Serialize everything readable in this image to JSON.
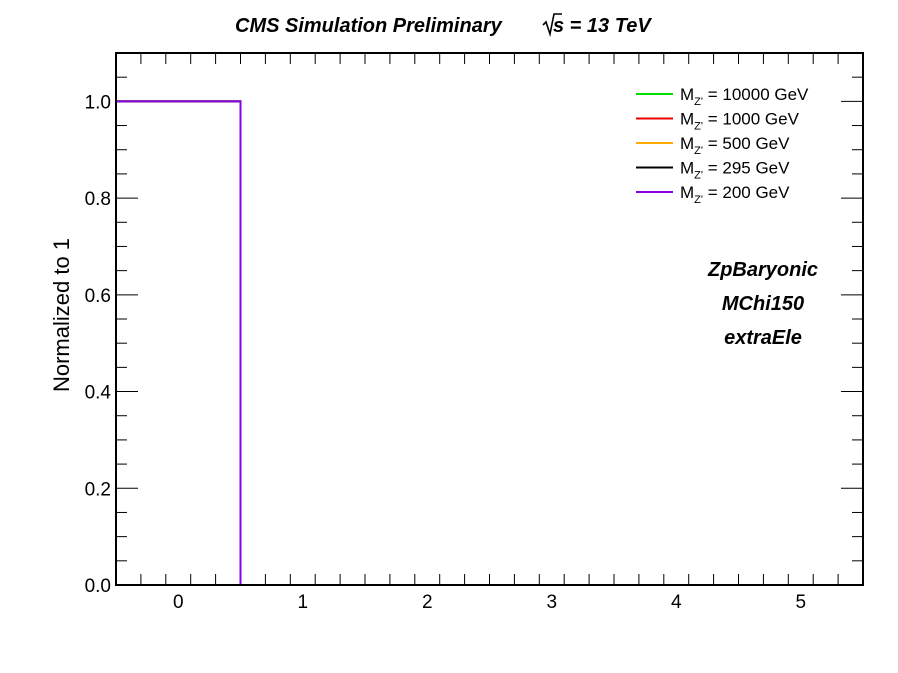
{
  "header": {
    "title_main": "CMS Simulation Preliminary",
    "title_sqrt": "s",
    "title_energy": " = 13 TeV"
  },
  "chart_data": {
    "type": "line",
    "ylabel": "Normalized to 1",
    "xlabel": "",
    "xlim": [
      -0.5,
      5.5
    ],
    "ylim": [
      0,
      1.1
    ],
    "xticks": [
      0,
      1,
      2,
      3,
      4,
      5
    ],
    "yticks": [
      0.0,
      0.2,
      0.4,
      0.6,
      0.8,
      1.0
    ],
    "ytick_labels": [
      "0.0",
      "0.2",
      "0.4",
      "0.6",
      "0.8",
      "1.0"
    ],
    "bin_edges": [
      -0.5,
      0.5,
      1.5,
      2.5,
      3.5,
      4.5,
      5.5
    ],
    "series": [
      {
        "name_prefix": "M",
        "name_sub": "Z'",
        "name_suffix": " = 10000 GeV",
        "color": "#00dd00",
        "values": [
          1,
          0,
          0,
          0,
          0,
          0
        ]
      },
      {
        "name_prefix": "M",
        "name_sub": "Z'",
        "name_suffix": " = 1000 GeV",
        "color": "#ee0000",
        "values": [
          1,
          0,
          0,
          0,
          0,
          0
        ]
      },
      {
        "name_prefix": "M",
        "name_sub": "Z'",
        "name_suffix": " = 500 GeV",
        "color": "#ffaa00",
        "values": [
          1,
          0,
          0,
          0,
          0,
          0
        ]
      },
      {
        "name_prefix": "M",
        "name_sub": "Z'",
        "name_suffix": " = 295 GeV",
        "color": "#000000",
        "values": [
          1,
          0,
          0,
          0,
          0,
          0
        ]
      },
      {
        "name_prefix": "M",
        "name_sub": "Z'",
        "name_suffix": " = 200 GeV",
        "color": "#8a00e6",
        "values": [
          1,
          0,
          0,
          0,
          0,
          0
        ]
      }
    ],
    "legend_position": "top-right",
    "annotations": [
      "ZpBaryonic",
      "MChi150",
      "extraEle"
    ]
  }
}
